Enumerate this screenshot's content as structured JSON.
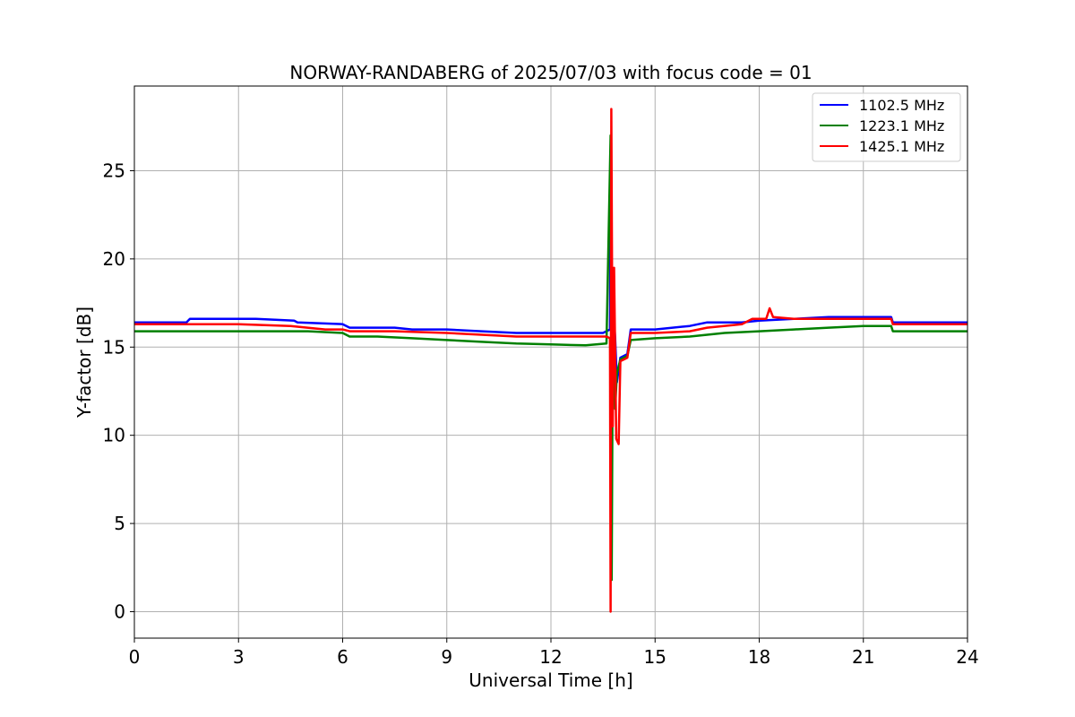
{
  "chart_data": {
    "type": "line",
    "title": "NORWAY-RANDABERG of 2025/07/03 with focus code = 01",
    "xlabel": "Universal Time [h]",
    "ylabel": "Y-factor [dB]",
    "xlim": [
      0,
      24
    ],
    "ylim": [
      -1.5,
      29.8
    ],
    "xticks": [
      0,
      3,
      6,
      9,
      12,
      15,
      18,
      21,
      24
    ],
    "yticks": [
      0,
      5,
      10,
      15,
      20,
      25
    ],
    "grid": true,
    "legend_position": "top-right",
    "series": [
      {
        "name": "1102.5 MHz",
        "color": "#0000ff",
        "x": [
          0,
          1.5,
          1.6,
          2.5,
          3.5,
          4.6,
          4.7,
          6.0,
          6.2,
          7.5,
          8.0,
          9.0,
          10.0,
          11.0,
          12.0,
          13.0,
          13.5,
          13.7,
          13.72,
          13.75,
          13.8,
          13.85,
          13.9,
          14.0,
          14.2,
          14.3,
          15.0,
          16.0,
          16.5,
          17.5,
          18.0,
          19.0,
          20.0,
          21.0,
          21.8,
          21.85,
          24.0
        ],
        "y": [
          16.4,
          16.4,
          16.6,
          16.6,
          16.6,
          16.5,
          16.4,
          16.3,
          16.1,
          16.1,
          16.0,
          16.0,
          15.9,
          15.8,
          15.8,
          15.8,
          15.8,
          16.0,
          25.0,
          10.0,
          17.2,
          15.5,
          13.0,
          14.4,
          14.6,
          16.0,
          16.0,
          16.2,
          16.4,
          16.4,
          16.5,
          16.6,
          16.7,
          16.7,
          16.7,
          16.4,
          16.4
        ]
      },
      {
        "name": "1223.1 MHz",
        "color": "#008000",
        "x": [
          0,
          1.5,
          3.0,
          5.0,
          6.0,
          6.2,
          7.0,
          8.0,
          9.0,
          10.0,
          11.0,
          12.0,
          13.0,
          13.6,
          13.72,
          13.75,
          13.78,
          13.85,
          13.9,
          14.0,
          14.2,
          14.3,
          15.0,
          16.0,
          17.0,
          18.0,
          19.0,
          20.0,
          21.0,
          21.8,
          21.85,
          24.0
        ],
        "y": [
          15.9,
          15.9,
          15.9,
          15.9,
          15.8,
          15.6,
          15.6,
          15.5,
          15.4,
          15.3,
          15.2,
          15.15,
          15.1,
          15.2,
          27.0,
          1.8,
          15.3,
          11.5,
          13.5,
          14.3,
          14.5,
          15.4,
          15.5,
          15.6,
          15.8,
          15.9,
          16.0,
          16.1,
          16.2,
          16.2,
          15.9,
          15.9
        ]
      },
      {
        "name": "1425.1 MHz",
        "color": "#ff0000",
        "x": [
          0,
          1.5,
          3.0,
          4.5,
          5.5,
          6.0,
          6.2,
          7.5,
          9.0,
          10.0,
          11.0,
          12.0,
          13.0,
          13.6,
          13.7,
          13.72,
          13.74,
          13.78,
          13.82,
          13.88,
          13.95,
          14.0,
          14.2,
          14.3,
          15.0,
          16.0,
          16.5,
          17.5,
          17.8,
          18.2,
          18.3,
          18.4,
          19.0,
          20.0,
          21.0,
          21.8,
          21.85,
          24.0
        ],
        "y": [
          16.3,
          16.3,
          16.3,
          16.2,
          16.0,
          16.0,
          15.9,
          15.9,
          15.8,
          15.7,
          15.6,
          15.6,
          15.6,
          15.6,
          15.5,
          0.0,
          28.5,
          10.5,
          19.5,
          9.8,
          9.5,
          14.2,
          14.4,
          15.8,
          15.8,
          15.9,
          16.1,
          16.3,
          16.6,
          16.6,
          17.2,
          16.7,
          16.6,
          16.6,
          16.6,
          16.6,
          16.3,
          16.3
        ]
      }
    ]
  }
}
